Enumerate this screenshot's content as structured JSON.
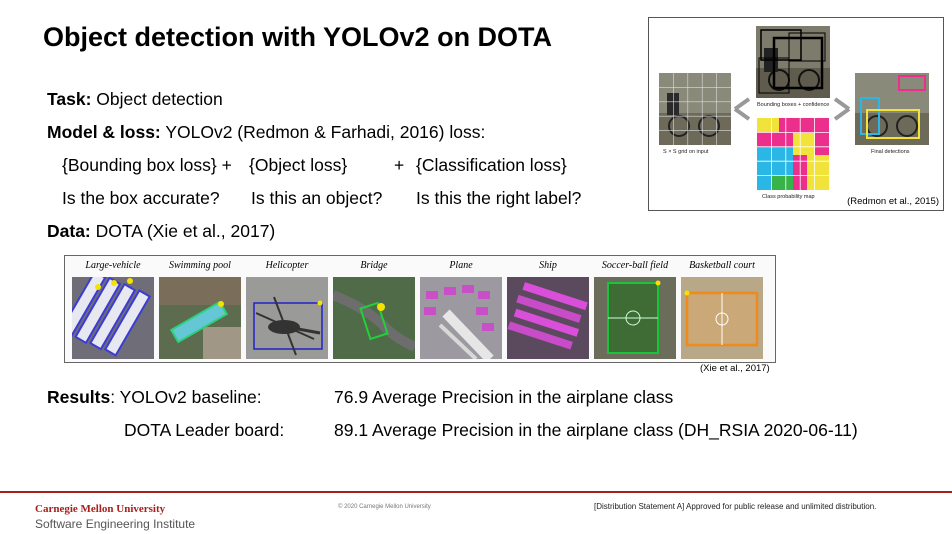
{
  "slide": {
    "title": "Object detection with YOLOv2 on DOTA",
    "task": {
      "label": "Task:",
      "value": "Object detection"
    },
    "model": {
      "label": "Model & loss:",
      "value": "YOLOv2 (Redmon & Farhadi, 2016) loss:"
    },
    "loss_terms": {
      "bbox": "{Bounding box loss} +",
      "object": "{Object loss}",
      "plus": "+",
      "cls": "{Classification loss}"
    },
    "questions": {
      "bbox": "Is the box accurate?",
      "object": "Is this an object?",
      "cls": "Is this the right label?"
    },
    "data": {
      "label": "Data:",
      "value": "DOTA (Xie et al., 2017)"
    },
    "results": {
      "label": "Results",
      "baseline_label": ": YOLOv2 baseline:",
      "baseline_value": "76.9 Average Precision in the airplane class",
      "leader_label": "DOTA Leader board:",
      "leader_value": "89.1 Average Precision in the airplane class (DH_RSIA 2020-06-11)"
    }
  },
  "yolo_figure": {
    "caption_grid": "S × S grid on input",
    "caption_boxes": "Bounding boxes + confidence",
    "caption_map": "Class probability map",
    "caption_final": "Final detections",
    "citation": "(Redmon et al., 2015)"
  },
  "dota_figure": {
    "categories": [
      "Large-vehicle",
      "Swimming pool",
      "Helicopter",
      "Bridge",
      "Plane",
      "Ship",
      "Soccer-ball field",
      "Basketball court"
    ],
    "citation": "(Xie et al., 2017)"
  },
  "footer": {
    "org": "Carnegie Mellon University",
    "institute": "Software Engineering Institute",
    "copyright": "© 2020 Carnegie Mellon University",
    "distribution": "[Distribution Statement A] Approved for public release and unlimited distribution."
  },
  "colors": {
    "accent": "#a8201a"
  }
}
